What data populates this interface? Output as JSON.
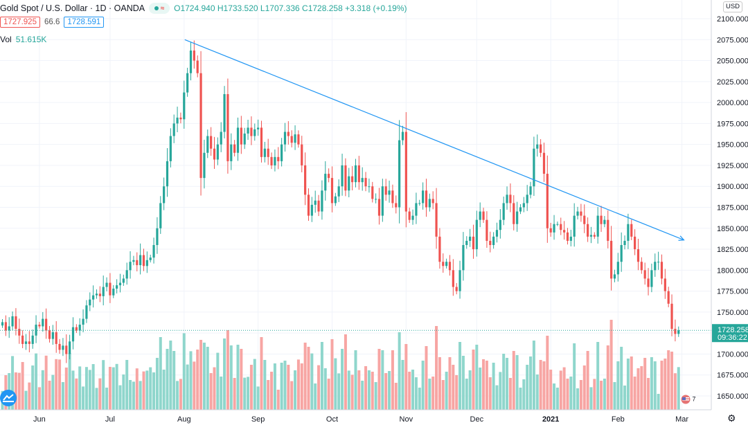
{
  "header": {
    "symbol": "Gold Spot / U.S. Dollar · 1D · OANDA",
    "ohlc": {
      "open_label": "O",
      "open": "1724.940",
      "high_label": "H",
      "high": "1733.520",
      "low_label": "L",
      "low": "1707.336",
      "close_label": "C",
      "close": "1728.258",
      "change": "+3.318 (+0.19%)"
    },
    "bid": "1727.925",
    "spread": "66.6",
    "ask": "1728.591",
    "volume_label": "Vol",
    "volume_value": "51.615K",
    "currency": "USD",
    "badge_text": "7"
  },
  "price_marker": {
    "price": "1728.258",
    "countdown": "09:36:22"
  },
  "colors": {
    "up": "#26a69a",
    "down": "#ef5350",
    "trend": "#2196f3",
    "vol_up": "#8fd6cc",
    "vol_down": "#f7a5a3"
  },
  "chart_data": {
    "type": "candlestick",
    "title": "Gold Spot / U.S. Dollar · 1D · OANDA",
    "ylim": [
      1640,
      2110
    ],
    "y_ticks": [
      1650,
      1675,
      1700,
      1725,
      1750,
      1775,
      1800,
      1825,
      1850,
      1875,
      1900,
      1925,
      1950,
      1975,
      2000,
      2025,
      2050,
      2075,
      2100
    ],
    "y_tick_labels": [
      "1650.000",
      "1675.000",
      "1700.000",
      "1725.000",
      "1750.000",
      "1775.000",
      "1800.000",
      "1825.000",
      "1850.000",
      "1875.000",
      "1900.000",
      "1925.000",
      "1950.000",
      "1975.000",
      "2000.000",
      "2025.000",
      "2050.000",
      "2075.000",
      "2100.000"
    ],
    "x_tick_labels": [
      {
        "label": "Jun",
        "index": 11
      },
      {
        "label": "Jul",
        "index": 32
      },
      {
        "label": "Aug",
        "index": 54
      },
      {
        "label": "Sep",
        "index": 76
      },
      {
        "label": "Oct",
        "index": 98
      },
      {
        "label": "Nov",
        "index": 120
      },
      {
        "label": "Dec",
        "index": 141
      },
      {
        "label": "2021",
        "index": 163
      },
      {
        "label": "Feb",
        "index": 183
      },
      {
        "label": "Mar",
        "index": 202
      }
    ],
    "closes": [
      1738,
      1728,
      1733,
      1745,
      1730,
      1722,
      1712,
      1715,
      1712,
      1722,
      1735,
      1733,
      1742,
      1728,
      1718,
      1726,
      1712,
      1705,
      1710,
      1700,
      1715,
      1732,
      1728,
      1735,
      1742,
      1758,
      1765,
      1770,
      1772,
      1769,
      1780,
      1785,
      1770,
      1778,
      1782,
      1785,
      1790,
      1800,
      1810,
      1812,
      1806,
      1818,
      1805,
      1812,
      1815,
      1830,
      1850,
      1880,
      1900,
      1930,
      1960,
      1975,
      1982,
      1980,
      2012,
      2035,
      2062,
      2050,
      2035,
      1910,
      1940,
      1960,
      1945,
      1932,
      1950,
      1965,
      2010,
      1930,
      1950,
      1940,
      1970,
      1950,
      1963,
      1970,
      1960,
      1968,
      1970,
      1935,
      1945,
      1935,
      1925,
      1935,
      1930,
      1950,
      1965,
      1960,
      1952,
      1962,
      1950,
      1925,
      1890,
      1865,
      1878,
      1883,
      1870,
      1895,
      1915,
      1910,
      1880,
      1888,
      1900,
      1925,
      1895,
      1912,
      1905,
      1925,
      1905,
      1910,
      1900,
      1900,
      1885,
      1885,
      1865,
      1900,
      1890,
      1895,
      1880,
      1875,
      1955,
      1965,
      1870,
      1860,
      1865,
      1880,
      1880,
      1895,
      1875,
      1885,
      1880,
      1840,
      1810,
      1805,
      1810,
      1800,
      1780,
      1775,
      1800,
      1830,
      1835,
      1840,
      1825,
      1860,
      1870,
      1860,
      1835,
      1830,
      1840,
      1848,
      1860,
      1880,
      1890,
      1880,
      1855,
      1870,
      1875,
      1880,
      1890,
      1900,
      1945,
      1950,
      1940,
      1915,
      1850,
      1845,
      1855,
      1855,
      1848,
      1845,
      1835,
      1840,
      1865,
      1870,
      1865,
      1855,
      1840,
      1842,
      1840,
      1865,
      1855,
      1860,
      1835,
      1790,
      1795,
      1810,
      1830,
      1835,
      1855,
      1840,
      1825,
      1810,
      1800,
      1790,
      1780,
      1800,
      1810,
      1810,
      1790,
      1775,
      1760,
      1730,
      1724,
      1728.258
    ],
    "price_marker": 1728.258,
    "trendline": {
      "start": {
        "index": 54,
        "price": 2075
      },
      "end": {
        "index": 203,
        "price": 1836
      }
    },
    "volume": {
      "label": "Vol",
      "last": "51.615K"
    }
  }
}
